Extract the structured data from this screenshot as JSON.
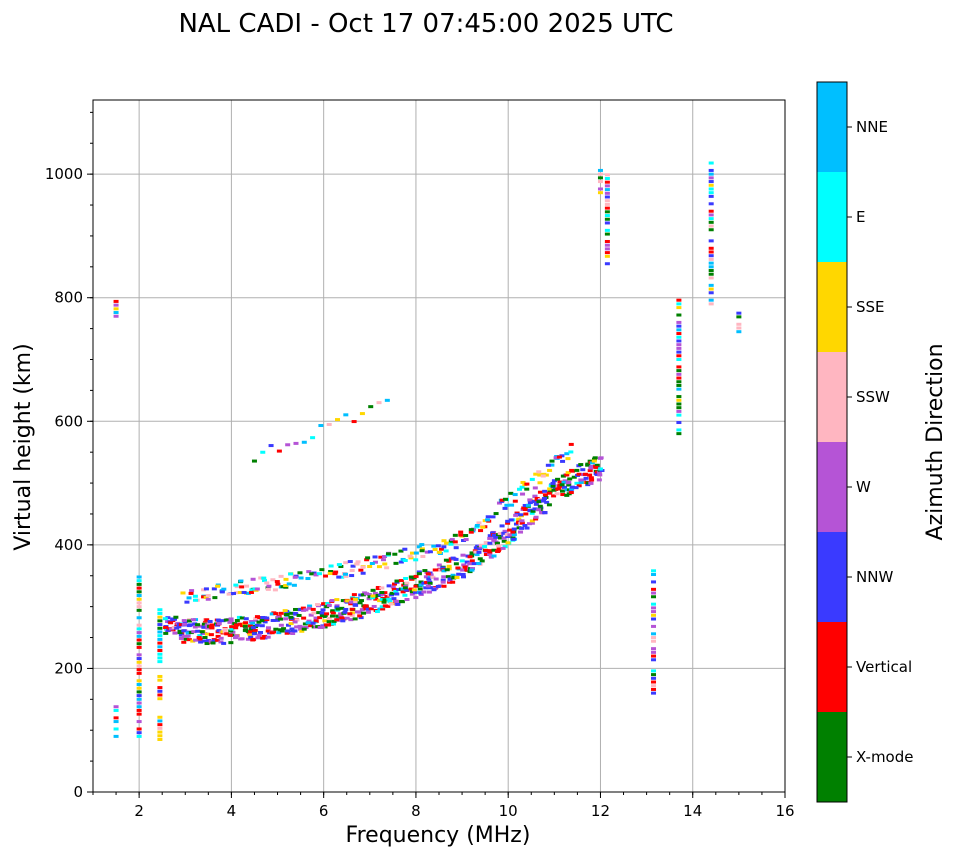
{
  "chart_data": {
    "type": "scatter",
    "title": "NAL CADI - Oct 17 07:45:00 2025 UTC",
    "xlabel": "Frequency (MHz)",
    "ylabel": "Virtual height (km)",
    "xlim": [
      1,
      16
    ],
    "ylim": [
      0,
      1120
    ],
    "xticks": [
      2,
      4,
      6,
      8,
      10,
      12,
      14,
      16
    ],
    "yticks": [
      0,
      200,
      400,
      600,
      800,
      1000
    ],
    "grid": true,
    "colorbar": {
      "label": "Azimuth Direction",
      "categories": [
        {
          "name": "X-mode",
          "color": "#008000"
        },
        {
          "name": "Vertical",
          "color": "#ff0000"
        },
        {
          "name": "NNW",
          "color": "#3a3aff"
        },
        {
          "name": "W",
          "color": "#b554d6"
        },
        {
          "name": "SSW",
          "color": "#ffb6c1"
        },
        {
          "name": "SSE",
          "color": "#ffd700"
        },
        {
          "name": "E",
          "color": "#00ffff"
        },
        {
          "name": "NNE",
          "color": "#00bfff"
        }
      ]
    },
    "trace_approx": [
      {
        "x": 2.6,
        "y": 265
      },
      {
        "x": 3.0,
        "y": 258
      },
      {
        "x": 3.5,
        "y": 255
      },
      {
        "x": 4.0,
        "y": 257
      },
      {
        "x": 4.5,
        "y": 262
      },
      {
        "x": 5.0,
        "y": 268
      },
      {
        "x": 5.5,
        "y": 275
      },
      {
        "x": 6.0,
        "y": 283
      },
      {
        "x": 6.5,
        "y": 292
      },
      {
        "x": 7.0,
        "y": 302
      },
      {
        "x": 7.5,
        "y": 315
      },
      {
        "x": 8.0,
        "y": 330
      },
      {
        "x": 8.5,
        "y": 345
      },
      {
        "x": 9.0,
        "y": 362
      },
      {
        "x": 9.5,
        "y": 385
      },
      {
        "x": 10.0,
        "y": 415
      },
      {
        "x": 10.5,
        "y": 450
      },
      {
        "x": 11.0,
        "y": 480
      },
      {
        "x": 11.5,
        "y": 505
      },
      {
        "x": 12.0,
        "y": 520
      }
    ],
    "trace_upper_approx": [
      {
        "x": 3.0,
        "y": 318
      },
      {
        "x": 4.0,
        "y": 328
      },
      {
        "x": 5.0,
        "y": 338
      },
      {
        "x": 6.0,
        "y": 352
      },
      {
        "x": 7.0,
        "y": 368
      },
      {
        "x": 8.0,
        "y": 385
      },
      {
        "x": 9.0,
        "y": 410
      },
      {
        "x": 10.0,
        "y": 470
      },
      {
        "x": 11.0,
        "y": 530
      },
      {
        "x": 11.5,
        "y": 565
      }
    ],
    "vertical_streaks": [
      {
        "x": 1.5,
        "y_range": [
          90,
          140
        ]
      },
      {
        "x": 2.0,
        "y_range": [
          90,
          350
        ]
      },
      {
        "x": 2.45,
        "y_range": [
          85,
          300
        ]
      },
      {
        "x": 1.5,
        "y_range": [
          770,
          795
        ]
      },
      {
        "x": 12.0,
        "y_range": [
          970,
          1018
        ]
      },
      {
        "x": 12.15,
        "y_range": [
          855,
          1000
        ]
      },
      {
        "x": 13.15,
        "y_range": [
          160,
          365
        ]
      },
      {
        "x": 13.7,
        "y_range": [
          580,
          800
        ]
      },
      {
        "x": 14.4,
        "y_range": [
          790,
          1018
        ]
      },
      {
        "x": 15.0,
        "y_range": [
          745,
          775
        ]
      }
    ]
  }
}
